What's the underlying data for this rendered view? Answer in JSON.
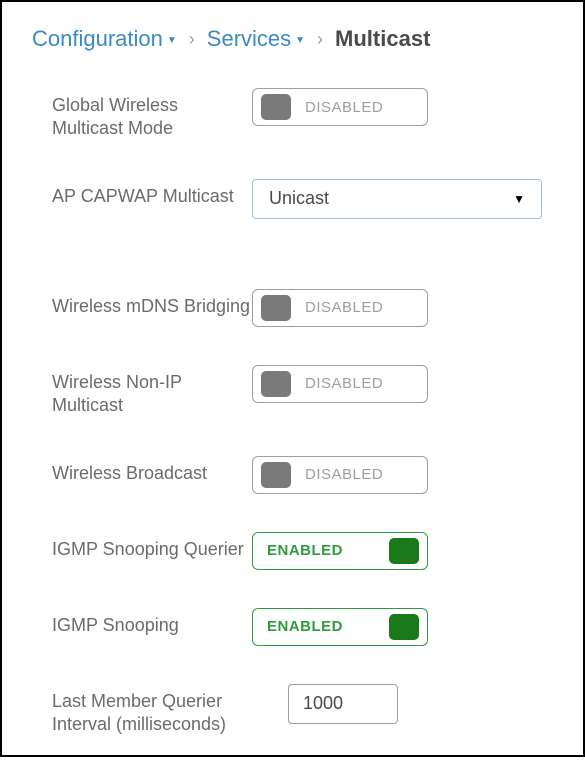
{
  "breadcrumb": {
    "items": [
      {
        "label": "Configuration",
        "hasDropdown": true,
        "link": true
      },
      {
        "label": "Services",
        "hasDropdown": true,
        "link": true
      },
      {
        "label": "Multicast",
        "hasDropdown": false,
        "link": false
      }
    ],
    "separator": "›"
  },
  "toggle_states": {
    "enabled_text": "ENABLED",
    "disabled_text": "DISABLED"
  },
  "colors": {
    "link": "#3b8ac4",
    "text_muted": "#6b6b6b",
    "border_gray": "#9e9e9e",
    "knob_gray": "#7a7a7a",
    "border_green": "#2e9b3f",
    "knob_green": "#1a7a1a",
    "select_border": "#9ebfd6"
  },
  "settings": [
    {
      "key": "global_wireless_multicast_mode",
      "label": "Global Wireless Multicast Mode",
      "type": "toggle",
      "value": "DISABLED"
    },
    {
      "key": "ap_capwap_multicast",
      "label": "AP CAPWAP Multicast",
      "type": "select",
      "value": "Unicast",
      "extra_gap": true
    },
    {
      "key": "wireless_mdns_bridging",
      "label": "Wireless mDNS Bridging",
      "type": "toggle",
      "value": "DISABLED"
    },
    {
      "key": "wireless_non_ip_multicast",
      "label": "Wireless Non-IP Multicast",
      "type": "toggle",
      "value": "DISABLED"
    },
    {
      "key": "wireless_broadcast",
      "label": "Wireless Broadcast",
      "type": "toggle",
      "value": "DISABLED"
    },
    {
      "key": "igmp_snooping_querier",
      "label": "IGMP Snooping Querier",
      "type": "toggle",
      "value": "ENABLED"
    },
    {
      "key": "igmp_snooping",
      "label": "IGMP Snooping",
      "type": "toggle",
      "value": "ENABLED"
    },
    {
      "key": "last_member_querier_interval",
      "label": "Last Member Querier Interval (milliseconds)",
      "type": "input",
      "value": "1000"
    }
  ]
}
